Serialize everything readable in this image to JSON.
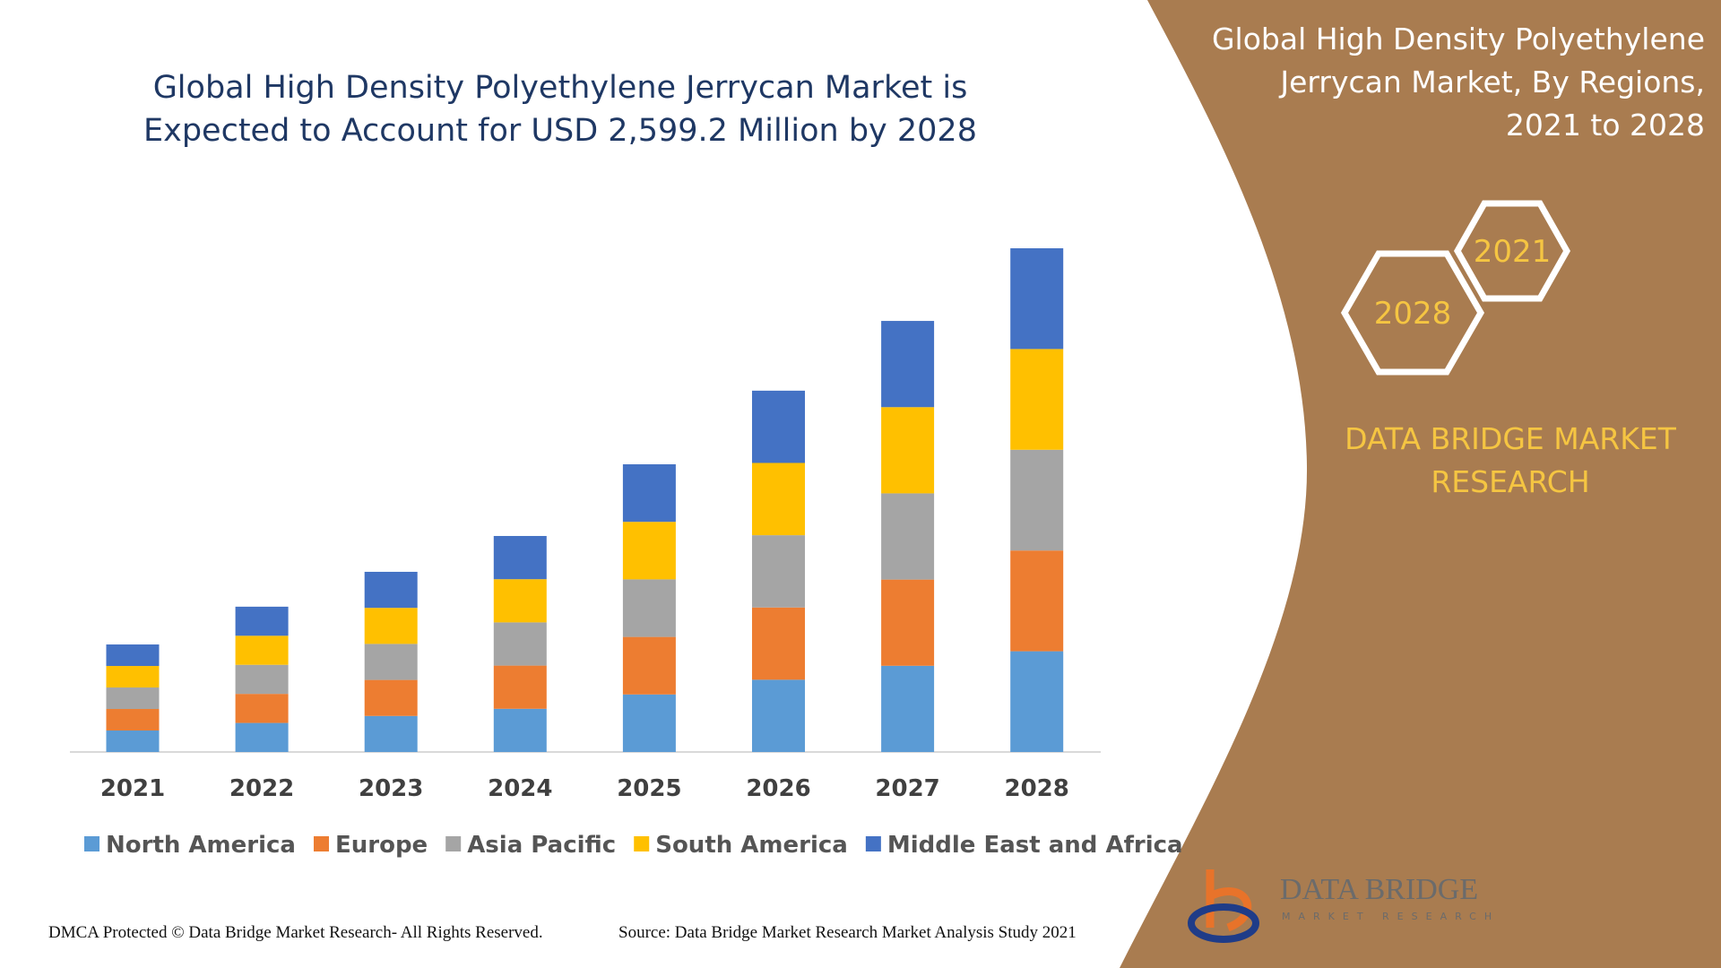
{
  "chart_data": {
    "type": "bar",
    "stacked": true,
    "title": "Global High Density Polyethylene Jerrycan Market is Expected to Account for USD 2,599.2 Million by 2028",
    "categories": [
      "2021",
      "2022",
      "2023",
      "2024",
      "2025",
      "2026",
      "2027",
      "2028"
    ],
    "series": [
      {
        "name": "North America",
        "color": "#5b9bd5",
        "values": [
          111,
          150,
          186,
          223,
          297,
          373,
          445,
          520
        ]
      },
      {
        "name": "Europe",
        "color": "#ed7d31",
        "values": [
          111,
          150,
          186,
          223,
          297,
          373,
          445,
          520
        ]
      },
      {
        "name": "Asia Pacific",
        "color": "#a5a5a5",
        "values": [
          111,
          150,
          186,
          223,
          297,
          373,
          445,
          520
        ]
      },
      {
        "name": "South America",
        "color": "#ffc000",
        "values": [
          111,
          150,
          186,
          223,
          297,
          373,
          445,
          520
        ]
      },
      {
        "name": "Middle East and Africa",
        "color": "#4472c4",
        "values": [
          111,
          150,
          186,
          223,
          297,
          373,
          445,
          520
        ]
      }
    ]
  },
  "panel": {
    "title": "Global High Density Polyethylene Jerrycan Market, By Regions, 2021 to 2028",
    "hexagons": [
      "2028",
      "2021"
    ],
    "brand": "DATA BRIDGE MARKET RESEARCH",
    "logo": "DATA BRIDGE",
    "logo_tagline": "MARKET RESEARCH"
  },
  "footer": {
    "copyright": "DMCA Protected © Data Bridge Market Research- All Rights Reserved.",
    "source": "Source: Data Bridge Market Research Market Analysis Study 2021"
  }
}
